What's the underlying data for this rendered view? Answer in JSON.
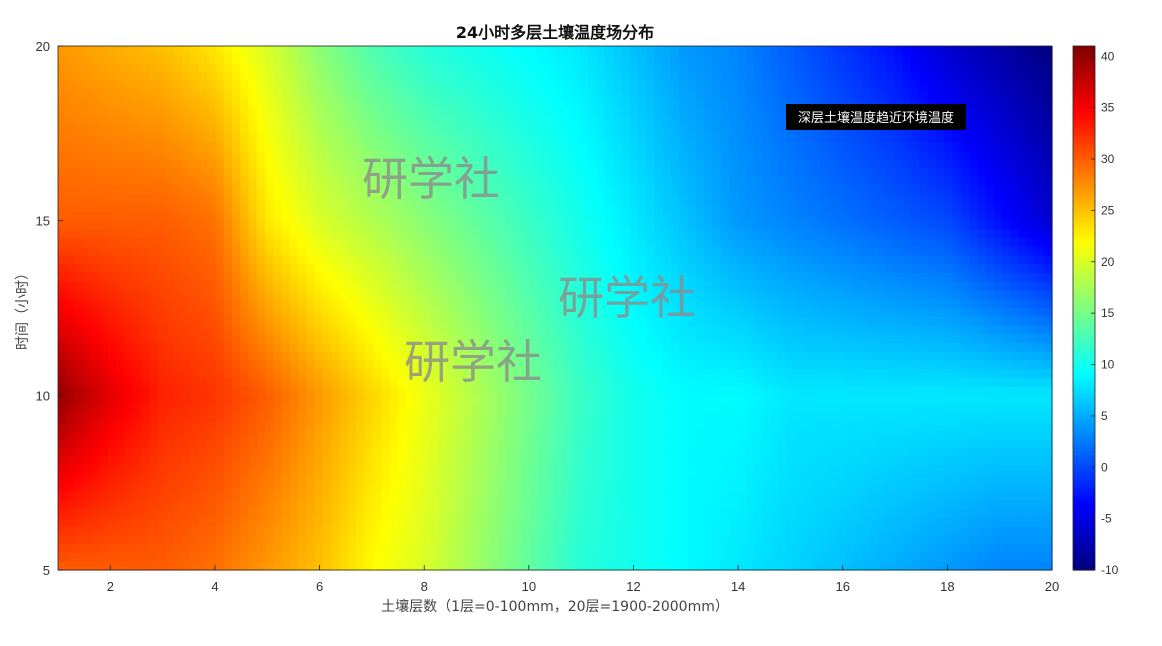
{
  "chart_data": {
    "type": "heatmap",
    "title": "24小时多层土壤温度场分布",
    "xlabel": "土壤层数（1层=0-100mm，20层=1900-2000mm）",
    "ylabel": "时间（小时）",
    "xlim": [
      1,
      20
    ],
    "ylim": [
      5,
      20
    ],
    "x_ticks": [
      2,
      4,
      6,
      8,
      10,
      12,
      14,
      16,
      18,
      20
    ],
    "y_ticks": [
      5,
      10,
      15,
      20
    ],
    "colorbar": {
      "colormap": "jet",
      "range": [
        -10,
        41
      ],
      "ticks": [
        -10,
        -5,
        0,
        5,
        10,
        15,
        20,
        25,
        30,
        35,
        40
      ]
    },
    "layers": [
      1,
      2,
      3,
      4,
      5,
      6,
      7,
      8,
      9,
      10,
      11,
      12,
      13,
      14,
      15,
      16,
      17,
      18,
      19,
      20
    ],
    "hours": [
      5,
      10,
      15,
      20
    ],
    "values": [
      [
        30,
        30,
        30,
        29,
        27,
        25,
        22,
        20,
        17,
        14,
        11,
        10,
        9,
        8,
        7,
        6,
        5,
        4,
        3,
        3
      ],
      [
        40,
        36,
        33,
        32,
        30,
        27,
        24,
        21,
        18,
        15,
        12,
        10,
        9,
        9,
        8,
        8,
        8,
        8,
        8,
        8
      ],
      [
        30,
        30,
        30,
        29,
        23,
        20,
        18,
        16,
        14,
        12,
        10,
        8,
        6,
        4,
        3,
        2,
        1,
        0,
        -3,
        -6
      ],
      [
        27,
        26,
        25,
        23,
        20,
        16,
        13,
        11,
        10,
        9,
        8,
        6,
        4,
        3,
        1,
        -1,
        -3,
        -6,
        -8,
        -10
      ]
    ],
    "annotations": [
      "深层土壤温度趋近环境温度"
    ],
    "grid": false,
    "legend": "none"
  },
  "watermarks": [
    "研学社",
    "研学社",
    "研学社"
  ]
}
